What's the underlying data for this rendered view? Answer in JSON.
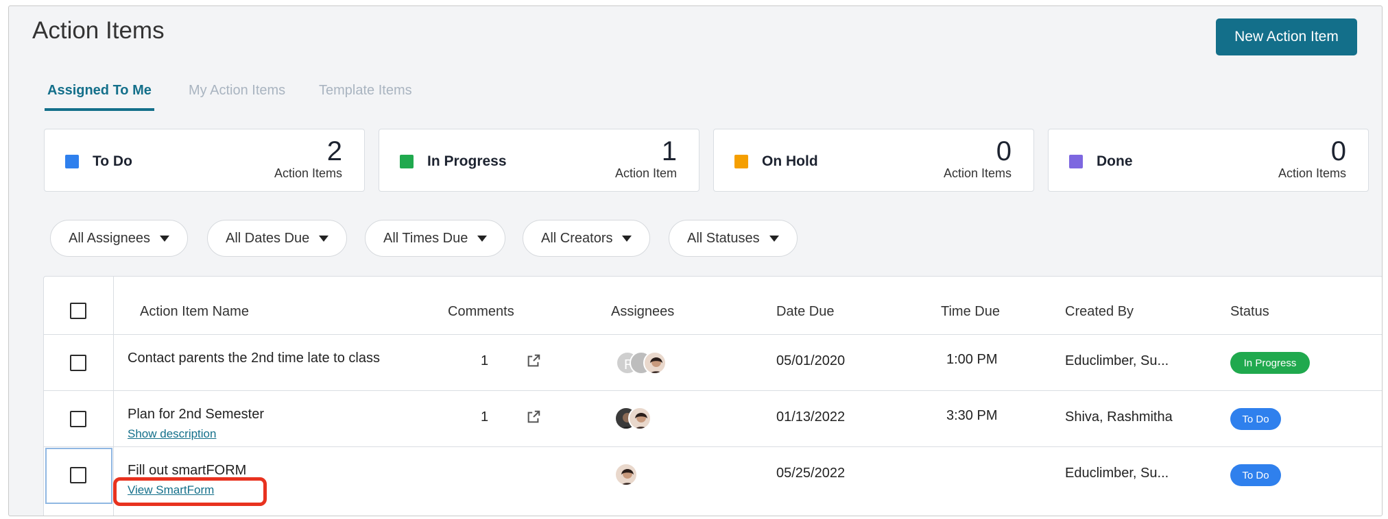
{
  "header": {
    "title": "Action Items",
    "new_button": "New Action Item"
  },
  "tabs": [
    {
      "label": "Assigned To Me",
      "active": true
    },
    {
      "label": "My Action Items",
      "active": false
    },
    {
      "label": "Template Items",
      "active": false
    }
  ],
  "status_cards": [
    {
      "label": "To Do",
      "count": "2",
      "sub": "Action Items",
      "color": "#2f80ed"
    },
    {
      "label": "In Progress",
      "count": "1",
      "sub": "Action Item",
      "color": "#20a94e"
    },
    {
      "label": "On Hold",
      "count": "0",
      "sub": "Action Items",
      "color": "#f59f00"
    },
    {
      "label": "Done",
      "count": "0",
      "sub": "Action Items",
      "color": "#7d67e0"
    }
  ],
  "filters": [
    "All Assignees",
    "All Dates Due",
    "All Times Due",
    "All Creators",
    "All Statuses"
  ],
  "table": {
    "columns": [
      "Action Item Name",
      "Comments",
      "Assignees",
      "Date Due",
      "Time Due",
      "Created By",
      "Status"
    ],
    "rows": [
      {
        "name": "Contact parents the 2nd time late to class",
        "link": "",
        "comments": "1",
        "date_due": "05/01/2020",
        "time_due": "1:00 PM",
        "created_by": "Educlimber, Su...",
        "status": "In Progress",
        "status_color": "#20a94e"
      },
      {
        "name": "Plan for 2nd Semester",
        "link": "Show description",
        "comments": "1",
        "date_due": "01/13/2022",
        "time_due": "3:30 PM",
        "created_by": "Shiva, Rashmitha",
        "status": "To Do",
        "status_color": "#2f80ed"
      },
      {
        "name": "Fill out smartFORM",
        "link": "View SmartForm",
        "comments": "",
        "date_due": "05/25/2022",
        "time_due": "",
        "created_by": "Educlimber, Su...",
        "status": "To Do",
        "status_color": "#2f80ed"
      }
    ]
  },
  "colors": {
    "accent": "#136f8a",
    "highlight": "#e8321f"
  }
}
